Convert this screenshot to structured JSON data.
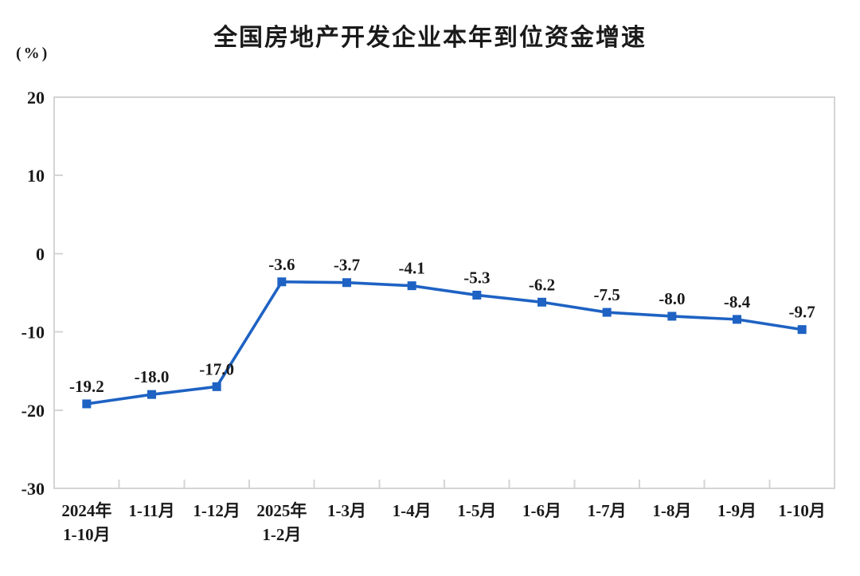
{
  "chart_data": {
    "type": "line",
    "title": "全国房地产开发企业本年到位资金增速",
    "ylabel": "(%)",
    "xlabel": "",
    "categories": [
      "2024年\n1-10月",
      "1-11月",
      "1-12月",
      "2025年\n1-2月",
      "1-3月",
      "1-4月",
      "1-5月",
      "1-6月",
      "1-7月",
      "1-8月",
      "1-9月",
      "1-10月"
    ],
    "series": [
      {
        "name": "本年到位资金增速",
        "values": [
          -19.2,
          -18.0,
          -17.0,
          -3.6,
          -3.7,
          -4.1,
          -5.3,
          -6.2,
          -7.5,
          -8.0,
          -8.4,
          -9.7
        ],
        "data_labels": [
          "-19.2",
          "-18.0",
          "-17.0",
          "-3.6",
          "-3.7",
          "-4.1",
          "-5.3",
          "-6.2",
          "-7.5",
          "-8.0",
          "-8.4",
          "-9.7"
        ]
      }
    ],
    "y_ticks": [
      20,
      10,
      0,
      -10,
      -20,
      -30
    ],
    "ylim": [
      -30,
      20
    ],
    "grid": false,
    "legend_position": "none",
    "marker": "square",
    "colors": {
      "line": "#1e62c3",
      "frame": "#d4d4d4",
      "text": "#1a1a1a"
    }
  }
}
